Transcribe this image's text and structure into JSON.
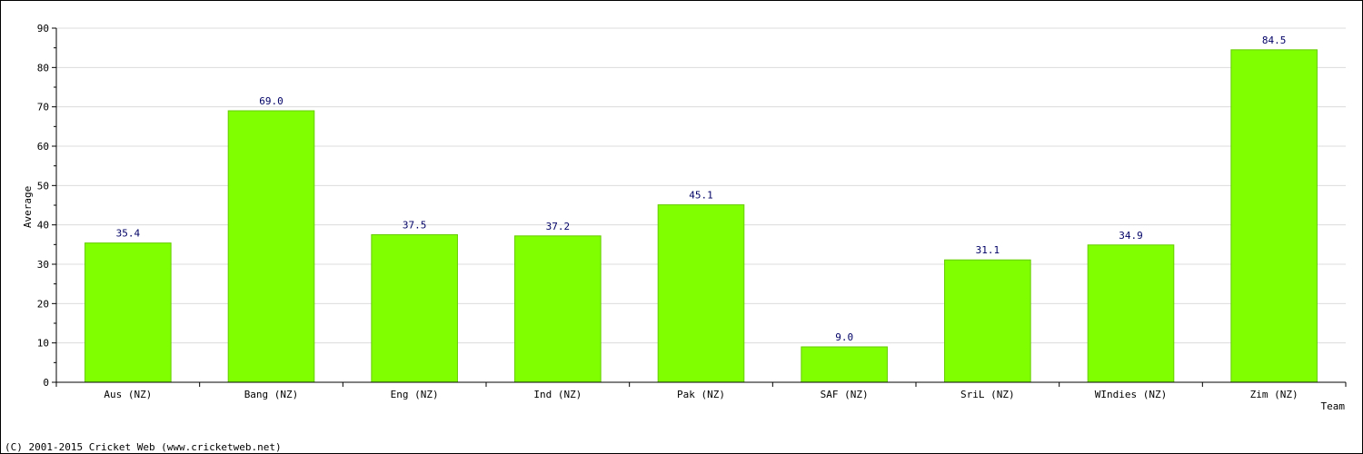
{
  "chart_data": {
    "type": "bar",
    "title": "",
    "xlabel": "Team",
    "ylabel": "Average",
    "categories": [
      "Aus (NZ)",
      "Bang (NZ)",
      "Eng (NZ)",
      "Ind (NZ)",
      "Pak (NZ)",
      "SAF (NZ)",
      "SriL (NZ)",
      "WIndies (NZ)",
      "Zim (NZ)"
    ],
    "values": [
      35.4,
      69.0,
      37.5,
      37.2,
      45.1,
      9.0,
      31.1,
      34.9,
      84.5
    ],
    "value_labels": [
      "35.4",
      "69.0",
      "37.5",
      "37.2",
      "45.1",
      "9.0",
      "31.1",
      "34.9",
      "84.5"
    ],
    "ylim": [
      0,
      90
    ],
    "yticks": [
      0,
      10,
      20,
      30,
      40,
      50,
      60,
      70,
      80,
      90
    ],
    "grid": true,
    "bar_color": "#7fff00",
    "label_color": "#000066"
  },
  "footer": {
    "copyright": "(C) 2001-2015 Cricket Web (www.cricketweb.net)"
  }
}
